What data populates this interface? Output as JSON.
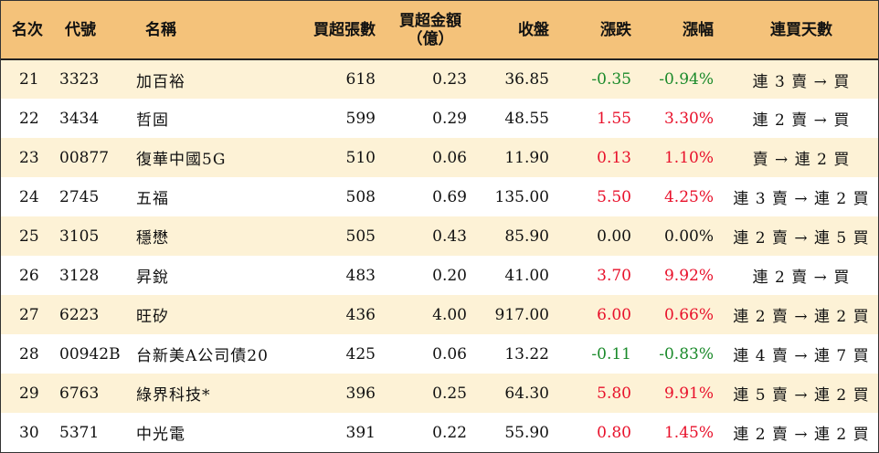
{
  "headers": {
    "rank": "名次",
    "code": "代號",
    "name": "名稱",
    "net_buy_lots": "買超張數",
    "net_buy_amount_line1": "買超金額",
    "net_buy_amount_line2": "（億）",
    "close": "收盤",
    "change": "漲跌",
    "change_pct": "漲幅",
    "consecutive_days": "連買天數"
  },
  "colors": {
    "header_bg": "#f4c27a",
    "row_alt_bg": "#fdf2d6",
    "up": "#e8102a",
    "down": "#1a8a2a"
  },
  "rows": [
    {
      "rank": "21",
      "code": "3323",
      "name": "加百裕",
      "lots": "618",
      "amount": "0.23",
      "close": "36.85",
      "change": "-0.35",
      "pct": "-0.94%",
      "trend": "down",
      "days": "連 3 賣 → 買"
    },
    {
      "rank": "22",
      "code": "3434",
      "name": "哲固",
      "lots": "599",
      "amount": "0.29",
      "close": "48.55",
      "change": "1.55",
      "pct": "3.30%",
      "trend": "up",
      "days": "連 2 賣 → 買"
    },
    {
      "rank": "23",
      "code": "00877",
      "name": "復華中國5G",
      "lots": "510",
      "amount": "0.06",
      "close": "11.90",
      "change": "0.13",
      "pct": "1.10%",
      "trend": "up",
      "days": "賣 → 連 2 買"
    },
    {
      "rank": "24",
      "code": "2745",
      "name": "五福",
      "lots": "508",
      "amount": "0.69",
      "close": "135.00",
      "change": "5.50",
      "pct": "4.25%",
      "trend": "up",
      "days": "連 3 賣 → 連 2 買"
    },
    {
      "rank": "25",
      "code": "3105",
      "name": "穩懋",
      "lots": "505",
      "amount": "0.43",
      "close": "85.90",
      "change": "0.00",
      "pct": "0.00%",
      "trend": "flat",
      "days": "連 2 賣 → 連 5 買"
    },
    {
      "rank": "26",
      "code": "3128",
      "name": "昇銳",
      "lots": "483",
      "amount": "0.20",
      "close": "41.00",
      "change": "3.70",
      "pct": "9.92%",
      "trend": "up",
      "days": "連 2 賣 → 買"
    },
    {
      "rank": "27",
      "code": "6223",
      "name": "旺矽",
      "lots": "436",
      "amount": "4.00",
      "close": "917.00",
      "change": "6.00",
      "pct": "0.66%",
      "trend": "up",
      "days": "連 2 賣 → 連 2 買"
    },
    {
      "rank": "28",
      "code": "00942B",
      "name": "台新美A公司債20",
      "lots": "425",
      "amount": "0.06",
      "close": "13.22",
      "change": "-0.11",
      "pct": "-0.83%",
      "trend": "down",
      "days": "連 4 賣 → 連 7 買"
    },
    {
      "rank": "29",
      "code": "6763",
      "name": "綠界科技*",
      "lots": "396",
      "amount": "0.25",
      "close": "64.30",
      "change": "5.80",
      "pct": "9.91%",
      "trend": "up",
      "days": "連 5 賣 → 連 2 買"
    },
    {
      "rank": "30",
      "code": "5371",
      "name": "中光電",
      "lots": "391",
      "amount": "0.22",
      "close": "55.90",
      "change": "0.80",
      "pct": "1.45%",
      "trend": "up",
      "days": "連 2 賣 → 連 2 買"
    }
  ]
}
